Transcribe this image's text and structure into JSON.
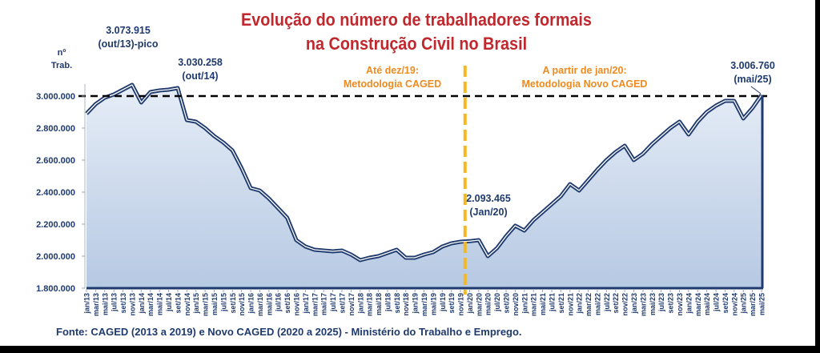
{
  "title_line1": "Evolução do número de trabalhadores  formais",
  "title_line2": "na Construção Civil no Brasil",
  "y_unit_line1": "nº",
  "y_unit_line2": "Trab.",
  "annotations": {
    "peak_value": "3.073.915",
    "peak_label": "(out/13)-pico",
    "oct14_value": "3.030.258",
    "oct14_label": "(out/14)",
    "jan20_value": "2.093.465",
    "jan20_label": "(Jan/20)",
    "may25_value": "3.006.760",
    "may25_label": "(mai/25)",
    "before_line1": "Até dez/19:",
    "before_line2": "Metodologia CAGED",
    "after_line1": "A partir de jan/20:",
    "after_line2": "Metodologia Novo CAGED"
  },
  "source": "Fonte: CAGED (2013 a 2019) e Novo CAGED (2020 a 2025) - Ministério do Trabalho e Emprego.",
  "colors": {
    "title": "#c0282d",
    "line": "#1f3a6e",
    "methodology": "#f5b820",
    "reference": "#000000"
  },
  "chart_data": {
    "type": "area",
    "title": "Evolução do número de trabalhadores formais na Construção Civil no Brasil",
    "ylabel": "nº Trab.",
    "ylim": [
      1800000,
      3000000
    ],
    "yticks": [
      "1.800.000",
      "2.000.000",
      "2.200.000",
      "2.400.000",
      "2.600.000",
      "2.800.000",
      "3.000.000"
    ],
    "ytick_values": [
      1800000,
      2000000,
      2200000,
      2400000,
      2600000,
      2800000,
      3000000
    ],
    "reference_line": 3000000,
    "methodology_break_after": "nov/19",
    "categories": [
      "jan/13",
      "mar/13",
      "mai/13",
      "jul/13",
      "set/13",
      "nov/13",
      "jan/14",
      "mar/14",
      "mai/14",
      "jul/14",
      "set/14",
      "nov/14",
      "jan/15",
      "mar/15",
      "mai/15",
      "jul/15",
      "set/15",
      "nov/15",
      "jan/16",
      "mar/16",
      "mai/16",
      "jul/16",
      "set/16",
      "nov/16",
      "jan/17",
      "mar/17",
      "mai/17",
      "jul/17",
      "set/17",
      "nov/17",
      "jan/18",
      "mar/18",
      "mai/18",
      "jul/18",
      "set/18",
      "nov/18",
      "jan/19",
      "mar/19",
      "mai/19",
      "jul/19",
      "set/19",
      "nov/19",
      "jan/20",
      "mar/20",
      "mai/20",
      "jul/20",
      "set/20",
      "nov/20",
      "jan/21",
      "mar/21",
      "mai/21",
      "jul/21",
      "set/21",
      "nov/21",
      "jan/22",
      "mar/22",
      "mai/22",
      "jul/22",
      "set/22",
      "nov/22",
      "jan/23",
      "mar/23",
      "mai/23",
      "jul/23",
      "set/23",
      "nov/23",
      "jan/24",
      "mar/24",
      "mai/24",
      "jul/24",
      "set/24",
      "nov/24",
      "jan/25",
      "mar/25",
      "mai/25"
    ],
    "values": [
      2890000,
      2950000,
      2990000,
      3010000,
      3040000,
      3070000,
      2960000,
      3025000,
      3035000,
      3040000,
      3050000,
      2850000,
      2840000,
      2800000,
      2750000,
      2710000,
      2660000,
      2550000,
      2425000,
      2410000,
      2360000,
      2300000,
      2240000,
      2100000,
      2060000,
      2040000,
      2035000,
      2030000,
      2035000,
      2010000,
      1975000,
      1990000,
      2000000,
      2020000,
      2040000,
      1990000,
      1990000,
      2010000,
      2025000,
      2060000,
      2080000,
      2090000,
      2093465,
      2100000,
      2000000,
      2050000,
      2125000,
      2190000,
      2160000,
      2225000,
      2275000,
      2325000,
      2375000,
      2450000,
      2410000,
      2475000,
      2540000,
      2600000,
      2650000,
      2690000,
      2600000,
      2640000,
      2700000,
      2750000,
      2800000,
      2840000,
      2760000,
      2840000,
      2900000,
      2940000,
      2970000,
      2970000,
      2860000,
      2925000,
      3006760
    ]
  }
}
